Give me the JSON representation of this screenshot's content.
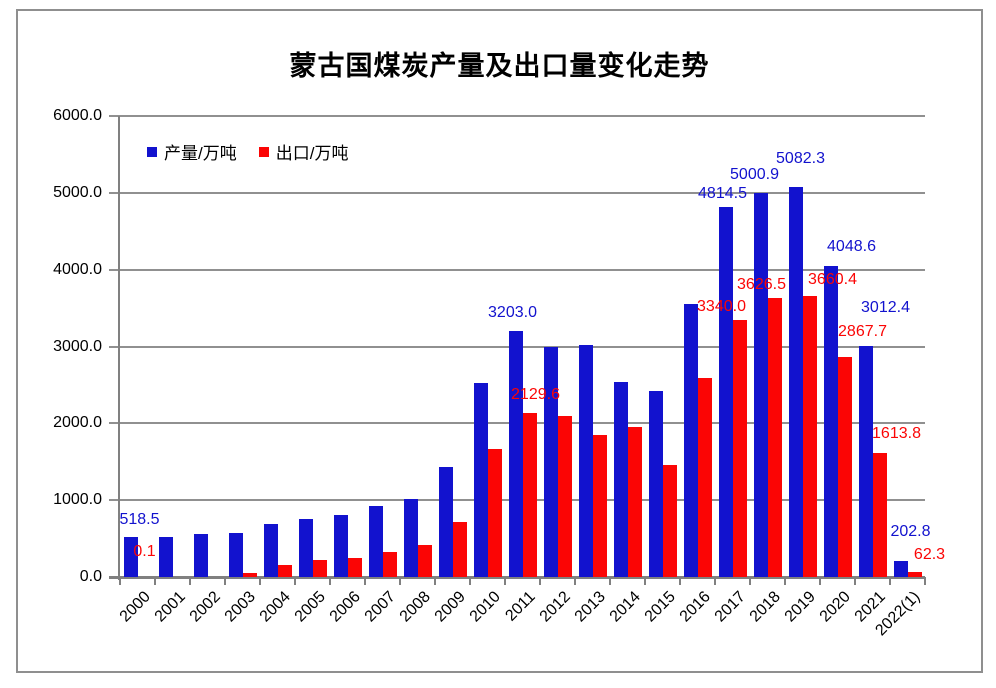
{
  "title": "蒙古国煤炭产量及出口量变化走势",
  "colors": {
    "production": "#1212ce",
    "export": "#fb0505",
    "gridline": "#909090",
    "axis": "#808080",
    "border": "#8f8f8f",
    "text": "#000000"
  },
  "legend": [
    {
      "label": "产量/万吨",
      "color": "#1212ce"
    },
    {
      "label": "出口/万吨",
      "color": "#fb0505"
    }
  ],
  "y_axis": {
    "tick_labels": [
      "0.0",
      "1000.0",
      "2000.0",
      "3000.0",
      "4000.0",
      "5000.0",
      "6000.0"
    ],
    "tick_step": 1000
  },
  "chart_data": {
    "type": "bar",
    "title": "蒙古国煤炭产量及出口量变化走势",
    "categories": [
      "2000",
      "2001",
      "2002",
      "2003",
      "2004",
      "2005",
      "2006",
      "2007",
      "2008",
      "2009",
      "2010",
      "2011",
      "2012",
      "2013",
      "2014",
      "2015",
      "2016",
      "2017",
      "2018",
      "2019",
      "2020",
      "2021",
      "2022(1)"
    ],
    "series": [
      {
        "name": "产量/万吨",
        "color": "#1212ce",
        "values": [
          518.5,
          515,
          560,
          575,
          685,
          755,
          810,
          925,
          1010,
          1430,
          2520,
          3203.0,
          2990,
          3015,
          2540,
          2425,
          3555,
          4814.5,
          5000.9,
          5082.3,
          4048.6,
          3012.4,
          202.8
        ],
        "data_labels": [
          "518.5",
          null,
          null,
          null,
          null,
          null,
          null,
          null,
          null,
          null,
          null,
          "3203.0",
          null,
          null,
          null,
          null,
          null,
          "4814.5",
          "5000.9",
          "5082.3",
          "4048.6",
          "3012.4",
          "202.8"
        ]
      },
      {
        "name": "出口/万吨",
        "color": "#fb0505",
        "values": [
          0.1,
          0,
          0,
          48,
          157,
          225,
          250,
          330,
          415,
          710,
          1665,
          2129.6,
          2095,
          1845,
          1955,
          1455,
          2590,
          3340.0,
          3626.5,
          3660.4,
          2867.7,
          1613.8,
          62.3
        ],
        "data_labels": [
          "0.1",
          null,
          null,
          null,
          null,
          null,
          null,
          null,
          null,
          null,
          null,
          "2129.6",
          null,
          null,
          null,
          null,
          null,
          "3340.0",
          "3626.5",
          "3660.4",
          "2867.7",
          "1613.8",
          "62.3"
        ]
      }
    ],
    "xlabel": "",
    "ylabel": "",
    "ylim": [
      0,
      6000
    ],
    "grid": true,
    "legend_position": "top-left-inside"
  }
}
